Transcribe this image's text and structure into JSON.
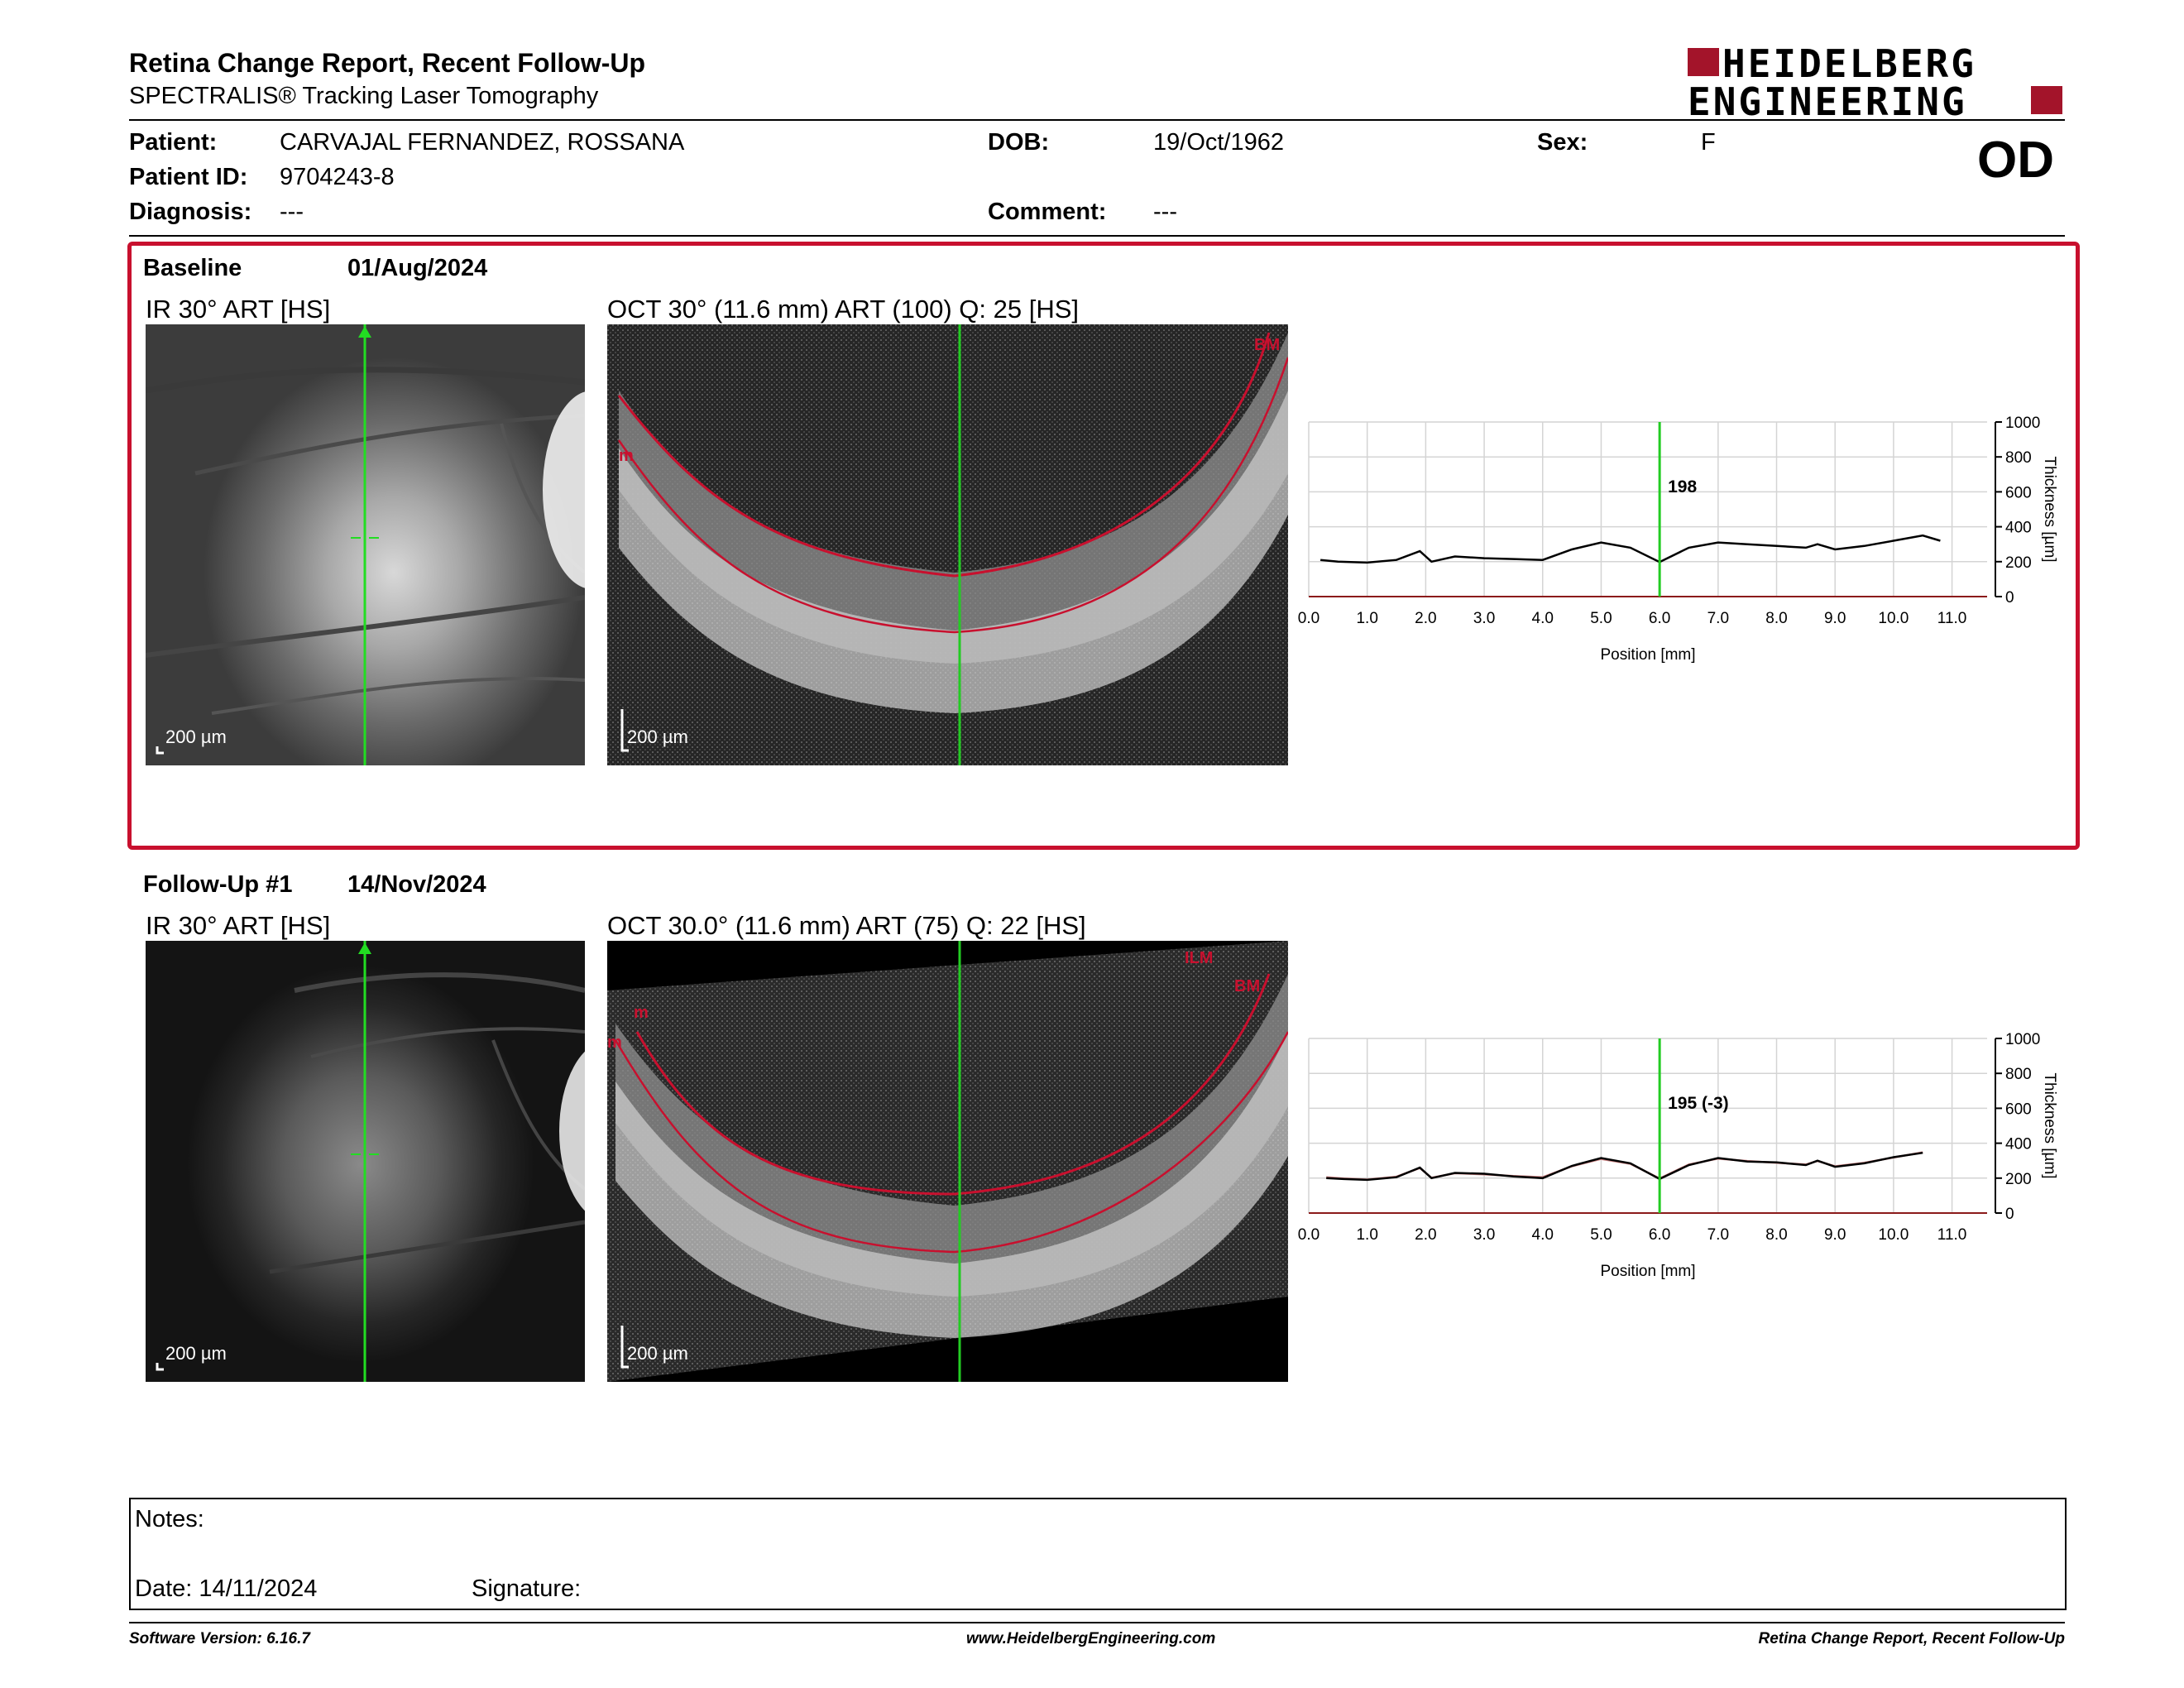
{
  "header": {
    "title": "Retina Change Report, Recent Follow-Up",
    "subtitle": "SPECTRALIS® Tracking Laser Tomography",
    "logo_line1": "HEIDELBERG",
    "logo_line2": "ENGINEERING",
    "eye": "OD"
  },
  "patient": {
    "patient_label": "Patient:",
    "patient_value": "CARVAJAL  FERNANDEZ, ROSSANA",
    "dob_label": "DOB:",
    "dob_value": "19/Oct/1962",
    "sex_label": "Sex:",
    "sex_value": "F",
    "id_label": "Patient ID:",
    "id_value": "9704243-8",
    "diagnosis_label": "Diagnosis:",
    "diagnosis_value": "---",
    "comment_label": "Comment:",
    "comment_value": "---"
  },
  "baseline": {
    "label": "Baseline",
    "date": "01/Aug/2024",
    "ir_caption": "IR 30° ART [HS]",
    "oct_caption": "OCT 30° (11.6 mm) ART (100) Q: 25 [HS]",
    "scale_label": "200 µm",
    "layer_bm": "BM",
    "layer_ilm": "m"
  },
  "followup": {
    "label": "Follow-Up #1",
    "date": "14/Nov/2024",
    "ir_caption": "IR 30° ART [HS]",
    "oct_caption": "OCT 30.0° (11.6 mm) ART (75) Q: 22 [HS]",
    "scale_label": "200 µm",
    "layer_ilm": "ILM",
    "layer_bm": "BM",
    "layer_m1": "m",
    "layer_m2": "m"
  },
  "chart_data": [
    {
      "type": "line",
      "xlabel": "Position [mm]",
      "ylabel": "Thickness [µm]",
      "xlim": [
        0,
        11.6
      ],
      "ylim": [
        0,
        1000
      ],
      "xticks": [
        "0.0",
        "1.0",
        "2.0",
        "3.0",
        "4.0",
        "5.0",
        "6.0",
        "7.0",
        "8.0",
        "9.0",
        "10.0",
        "11.0"
      ],
      "yticks": [
        "0",
        "200",
        "400",
        "600",
        "800",
        "1000"
      ],
      "marker_x": 6.0,
      "marker_label": "198",
      "grid": true,
      "series": [
        {
          "x": [
            0.2,
            0.5,
            1.0,
            1.5,
            1.9,
            2.1,
            2.5,
            3.0,
            3.5,
            4.0,
            4.5,
            5.0,
            5.5,
            6.0,
            6.5,
            7.0,
            7.5,
            8.0,
            8.5,
            8.7,
            9.0,
            9.5,
            10.0,
            10.5,
            10.8
          ],
          "y": [
            210,
            200,
            195,
            210,
            260,
            200,
            230,
            220,
            215,
            210,
            270,
            310,
            280,
            198,
            280,
            310,
            300,
            290,
            280,
            300,
            270,
            290,
            320,
            350,
            320
          ]
        }
      ]
    },
    {
      "type": "line",
      "xlabel": "Position [mm]",
      "ylabel": "Thickness [µm]",
      "xlim": [
        0,
        11.6
      ],
      "ylim": [
        0,
        1000
      ],
      "xticks": [
        "0.0",
        "1.0",
        "2.0",
        "3.0",
        "4.0",
        "5.0",
        "6.0",
        "7.0",
        "8.0",
        "9.0",
        "10.0",
        "11.0"
      ],
      "yticks": [
        "0",
        "200",
        "400",
        "600",
        "800",
        "1000"
      ],
      "marker_x": 6.0,
      "marker_label": "195 (-3)",
      "grid": true,
      "series": [
        {
          "x": [
            0.3,
            0.6,
            1.0,
            1.5,
            1.9,
            2.1,
            2.5,
            3.0,
            3.5,
            4.0,
            4.5,
            5.0,
            5.5,
            6.0,
            6.5,
            7.0,
            7.5,
            8.0,
            8.5,
            8.7,
            9.0,
            9.5,
            10.0,
            10.5
          ],
          "y": [
            200,
            195,
            190,
            205,
            260,
            200,
            230,
            225,
            210,
            200,
            270,
            315,
            285,
            195,
            275,
            315,
            295,
            290,
            275,
            300,
            265,
            285,
            320,
            345
          ]
        },
        {
          "x": [
            0.3,
            0.6,
            1.0,
            1.5,
            1.9,
            2.1,
            2.5,
            3.0,
            3.5,
            4.0,
            4.5,
            5.0,
            5.5,
            6.0,
            6.5,
            7.0,
            7.5,
            8.0,
            8.5,
            8.7,
            9.0,
            9.5,
            10.0,
            10.5
          ],
          "y": [
            205,
            198,
            192,
            208,
            258,
            202,
            228,
            222,
            212,
            205,
            268,
            310,
            282,
            198,
            278,
            312,
            298,
            288,
            278,
            298,
            268,
            288,
            318,
            348
          ]
        }
      ],
      "colors": [
        "#000000",
        "#cc8080"
      ]
    }
  ],
  "notes": {
    "notes_label": "Notes:",
    "date_label": "Date: 14/11/2024",
    "signature_label": "Signature:"
  },
  "footer": {
    "version": "Software Version: 6.16.7",
    "website": "www.HeidelbergEngineering.com",
    "report": "Retina Change Report, Recent Follow-Up"
  }
}
